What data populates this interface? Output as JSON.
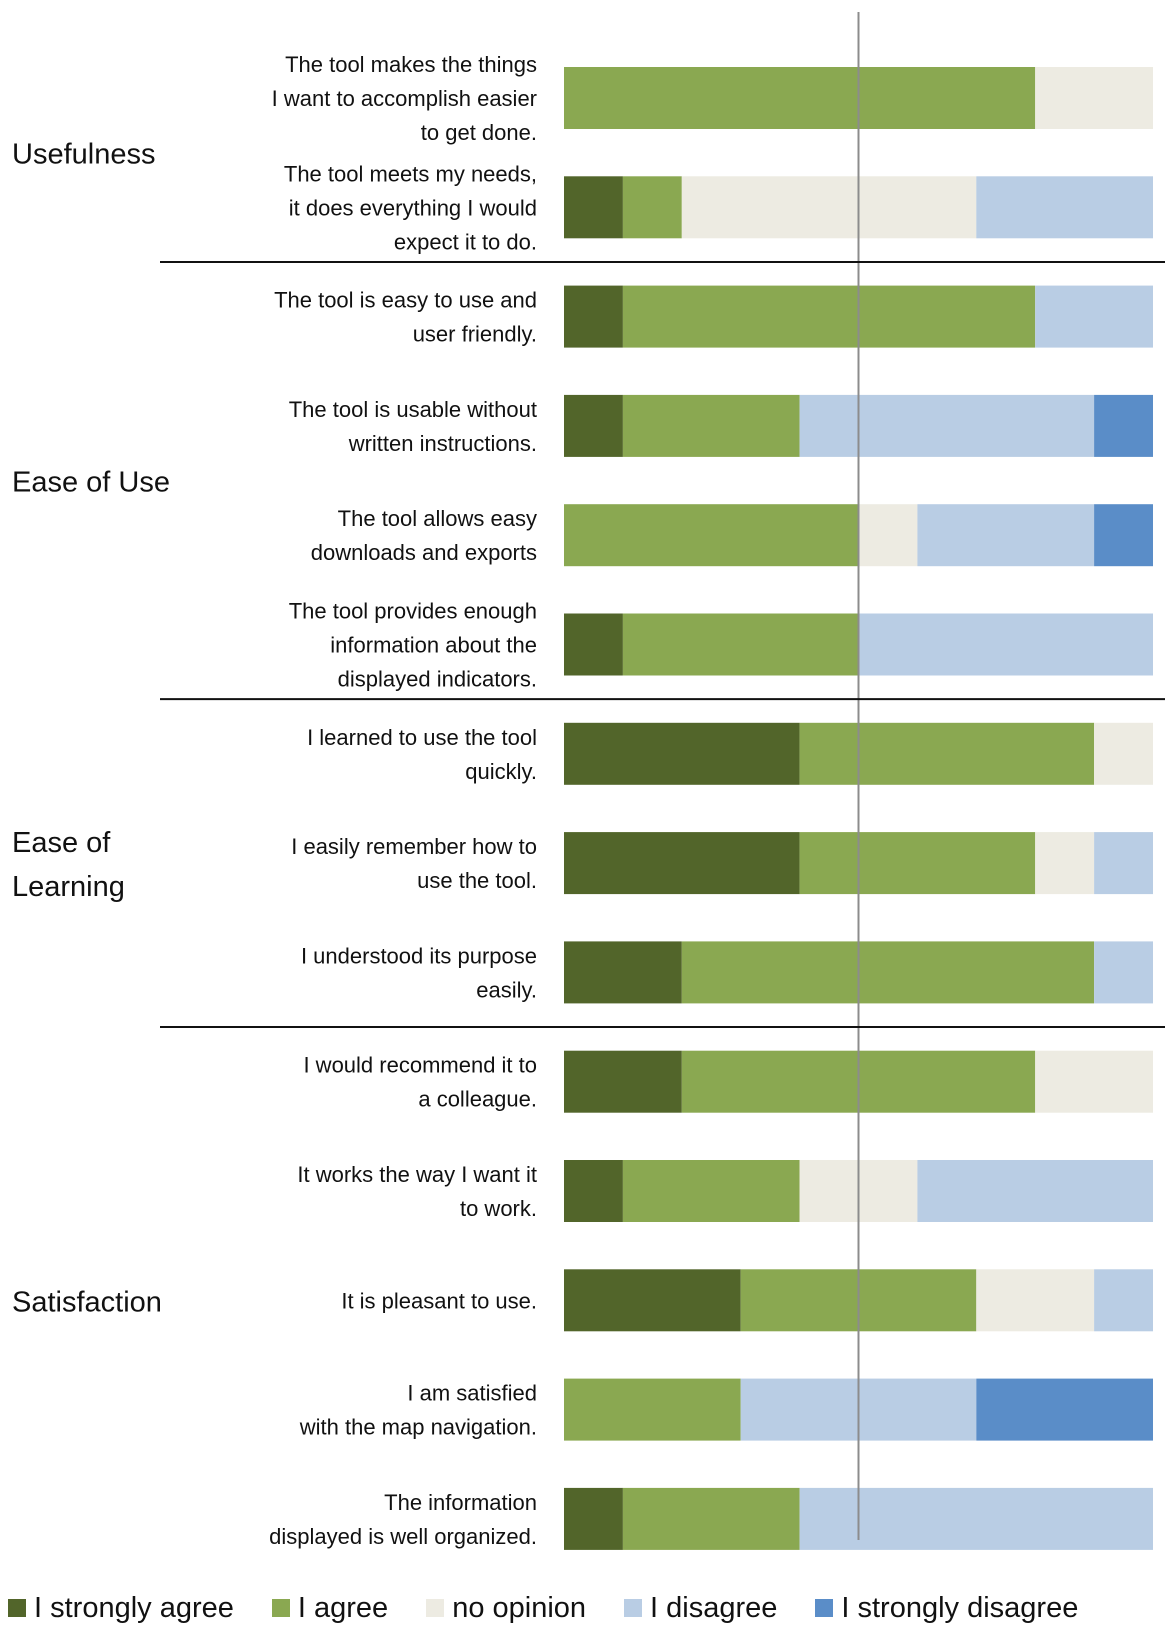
{
  "chart_data": {
    "type": "bar",
    "stacked": true,
    "orientation": "horizontal",
    "units": "share of responses",
    "categories": [
      "The tool makes the things I want to accomplish easier to get done.",
      "The tool meets my needs, it does everything I would expect it to do.",
      "The tool is easy to use and user friendly.",
      "The tool is usable without written instructions.",
      "The tool allows easy downloads and exports",
      "The tool provides enough information about the displayed indicators.",
      "I learned to use the tool quickly.",
      "I easily remember how to use the tool.",
      "I understood its purpose easily.",
      "I would recommend it to a colleague.",
      "It works the way I want it to work.",
      "It is pleasant to use.",
      "I am satisfied with the map navigation.",
      "The information displayed is well organized."
    ],
    "category_lines": [
      [
        "The tool makes the things",
        "I want to accomplish easier",
        "to get done."
      ],
      [
        "The tool meets my needs,",
        "it does everything I would",
        "expect it to do."
      ],
      [
        "The tool is easy to use and",
        "user friendly."
      ],
      [
        "The tool is usable without",
        "written instructions."
      ],
      [
        "The tool allows easy",
        "downloads and exports"
      ],
      [
        "The tool provides enough",
        "information about the",
        "displayed indicators."
      ],
      [
        "I learned to use the tool",
        "quickly."
      ],
      [
        "I easily remember how to",
        "use the tool."
      ],
      [
        "I understood its purpose",
        "easily."
      ],
      [
        "I would recommend it to",
        "a colleague."
      ],
      [
        "It works the way I want it",
        "to work."
      ],
      [
        "It is pleasant to use."
      ],
      [
        "I am satisfied",
        "with the map navigation."
      ],
      [
        "The information",
        "displayed is well organized."
      ]
    ],
    "groups": [
      {
        "label_lines": [
          "Usefulness"
        ],
        "items": [
          0,
          1
        ]
      },
      {
        "label_lines": [
          "Ease of Use"
        ],
        "items": [
          2,
          3,
          4,
          5
        ]
      },
      {
        "label_lines": [
          "Ease of",
          "Learning"
        ],
        "items": [
          6,
          7,
          8
        ]
      },
      {
        "label_lines": [
          "Satisfaction"
        ],
        "items": [
          9,
          10,
          11,
          12,
          13
        ]
      }
    ],
    "series": [
      {
        "name": "I strongly agree",
        "color": "#52652a",
        "values": [
          0,
          0.1,
          0.1,
          0.1,
          0,
          0.1,
          0.4,
          0.4,
          0.2,
          0.2,
          0.1,
          0.3,
          0,
          0.1
        ]
      },
      {
        "name": "I agree",
        "color": "#8aa851",
        "values": [
          0.8,
          0.1,
          0.7,
          0.3,
          0.5,
          0.4,
          0.5,
          0.4,
          0.7,
          0.6,
          0.3,
          0.4,
          0.3,
          0.3
        ]
      },
      {
        "name": "no opinion",
        "color": "#edebe2",
        "values": [
          0.2,
          0.5,
          0,
          0,
          0.1,
          0,
          0.1,
          0.1,
          0,
          0.2,
          0.2,
          0.2,
          0,
          0
        ]
      },
      {
        "name": "I disagree",
        "color": "#b9cde4",
        "values": [
          0,
          0.3,
          0.2,
          0.5,
          0.3,
          0.5,
          0,
          0.1,
          0.1,
          0,
          0.4,
          0.1,
          0.4,
          0.6
        ]
      },
      {
        "name": "I strongly disagree",
        "color": "#5a8dc8",
        "values": [
          0,
          0,
          0,
          0.1,
          0.1,
          0,
          0,
          0,
          0,
          0,
          0,
          0,
          0.3,
          0
        ]
      }
    ],
    "xlim": [
      0,
      1
    ],
    "reference_line": 0.5,
    "legend_position": "bottom",
    "grid": false
  }
}
